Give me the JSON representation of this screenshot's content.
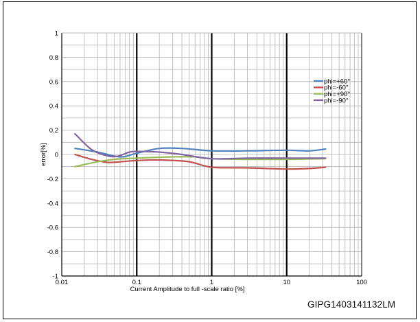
{
  "chart_data": {
    "type": "line",
    "xscale": "log",
    "xlim": [
      0.01,
      100
    ],
    "ylim": [
      -1,
      1
    ],
    "grid": true,
    "xlabel": "Current Amplitude to full  -scale ratio [%]",
    "ylabel": "error[%]",
    "x_tick_labels": [
      "0.01",
      "0.1",
      "1",
      "10",
      "100"
    ],
    "y_tick_labels": [
      "1",
      "0.8",
      "0.6",
      "0.4",
      "0.2",
      "0",
      "-0.2",
      "-0.4",
      "-0.6",
      "-0.8",
      "-1"
    ],
    "legend_position": "right, below the top of the plot area",
    "series": [
      {
        "name": "phi=+60°",
        "color": "#4f81bd",
        "points": [
          [
            0.015,
            0.05
          ],
          [
            0.03,
            0.02
          ],
          [
            0.06,
            -0.02
          ],
          [
            0.1,
            0.01
          ],
          [
            0.2,
            0.05
          ],
          [
            0.4,
            0.05
          ],
          [
            1,
            0.03
          ],
          [
            3,
            0.03
          ],
          [
            10,
            0.035
          ],
          [
            20,
            0.03
          ],
          [
            33,
            0.045
          ]
        ]
      },
      {
        "name": "phi=-60°",
        "color": "#c0504d",
        "points": [
          [
            0.015,
            0.0
          ],
          [
            0.025,
            -0.04
          ],
          [
            0.04,
            -0.065
          ],
          [
            0.06,
            -0.06
          ],
          [
            0.1,
            -0.05
          ],
          [
            0.2,
            -0.045
          ],
          [
            0.5,
            -0.06
          ],
          [
            1,
            -0.105
          ],
          [
            3,
            -0.11
          ],
          [
            10,
            -0.12
          ],
          [
            20,
            -0.115
          ],
          [
            33,
            -0.105
          ]
        ]
      },
      {
        "name": "phi=+90°",
        "color": "#9bbb59",
        "points": [
          [
            0.015,
            -0.1
          ],
          [
            0.03,
            -0.06
          ],
          [
            0.05,
            -0.04
          ],
          [
            0.1,
            -0.03
          ],
          [
            0.3,
            -0.02
          ],
          [
            0.6,
            -0.02
          ],
          [
            1,
            -0.035
          ],
          [
            3,
            -0.04
          ],
          [
            10,
            -0.04
          ],
          [
            33,
            -0.035
          ]
        ]
      },
      {
        "name": "phi=-90°",
        "color": "#8064a2",
        "points": [
          [
            0.015,
            0.17
          ],
          [
            0.025,
            0.04
          ],
          [
            0.04,
            -0.01
          ],
          [
            0.055,
            -0.015
          ],
          [
            0.08,
            0.02
          ],
          [
            0.1,
            0.025
          ],
          [
            0.2,
            0.02
          ],
          [
            0.4,
            0.0
          ],
          [
            1,
            -0.035
          ],
          [
            3,
            -0.03
          ],
          [
            10,
            -0.03
          ],
          [
            33,
            -0.03
          ]
        ]
      }
    ]
  },
  "figure_id": "GIPG1403141132LM"
}
